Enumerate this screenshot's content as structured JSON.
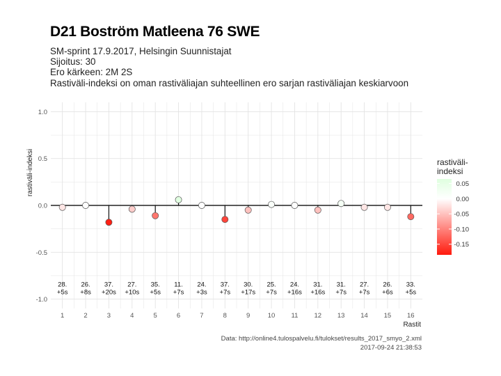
{
  "header": {
    "title": "D21 Boström Matleena 76 SWE",
    "subtitle_lines": [
      "SM-sprint 17.9.2017, Helsingin Suunnistajat",
      "Sijoitus: 30",
      "Ero kärkeen: 2M 2S",
      "Rastiväli-indeksi on oman rastiväliajan suhteellinen ero sarjan rastiväliajan keskiarvoon"
    ]
  },
  "footer": {
    "data_source": "Data: http://online4.tulospalvelu.fi/tulokset/results_2017_smyo_2.xml",
    "timestamp": "2017-09-24 21:38:53"
  },
  "chart_data": {
    "type": "scatter",
    "xlabel": "Rastit",
    "ylabel": "rastiväli-indeksi",
    "ylim": [
      -1.1,
      1.1
    ],
    "xlim": [
      0.5,
      16.5
    ],
    "y_ticks": [
      "1.0",
      "0.5",
      "0.0",
      "-0.5",
      "-1.0"
    ],
    "y_tick_values": [
      1.0,
      0.5,
      0.0,
      -0.5,
      -1.0
    ],
    "x": [
      1,
      2,
      3,
      4,
      5,
      6,
      7,
      8,
      9,
      10,
      11,
      12,
      13,
      14,
      15,
      16
    ],
    "values": [
      -0.02,
      0.0,
      -0.18,
      -0.04,
      -0.11,
      0.06,
      0.0,
      -0.15,
      -0.05,
      0.01,
      0.0,
      -0.05,
      0.02,
      -0.02,
      -0.02,
      -0.12
    ],
    "annotations": [
      [
        "28.",
        "+5s"
      ],
      [
        "26.",
        "+8s"
      ],
      [
        "37.",
        "+20s"
      ],
      [
        "27.",
        "+10s"
      ],
      [
        "35.",
        "+5s"
      ],
      [
        "11.",
        "+7s"
      ],
      [
        "24.",
        "+3s"
      ],
      [
        "37.",
        "+7s"
      ],
      [
        "30.",
        "+17s"
      ],
      [
        "25.",
        "+7s"
      ],
      [
        "24.",
        "+16s"
      ],
      [
        "31.",
        "+16s"
      ],
      [
        "31.",
        "+7s"
      ],
      [
        "27.",
        "+7s"
      ],
      [
        "26.",
        "+6s"
      ],
      [
        "33.",
        "+5s"
      ]
    ],
    "annotation_y": -0.9,
    "grid": true,
    "legend": {
      "title_lines": [
        "rastiväli-",
        "indeksi"
      ],
      "placement": "right",
      "labels": [
        "0.05",
        "0.00",
        "-0.05",
        "-0.10",
        "-0.15"
      ],
      "label_values": [
        0.05,
        0.0,
        -0.05,
        -0.1,
        -0.15
      ],
      "range": [
        -0.185,
        0.065
      ]
    },
    "colors": {
      "high": "#dfffdf",
      "mid": "#ffffff",
      "low": "#ff1a0d",
      "grid": "#e3e3e3",
      "zero_line": "#222222"
    }
  }
}
